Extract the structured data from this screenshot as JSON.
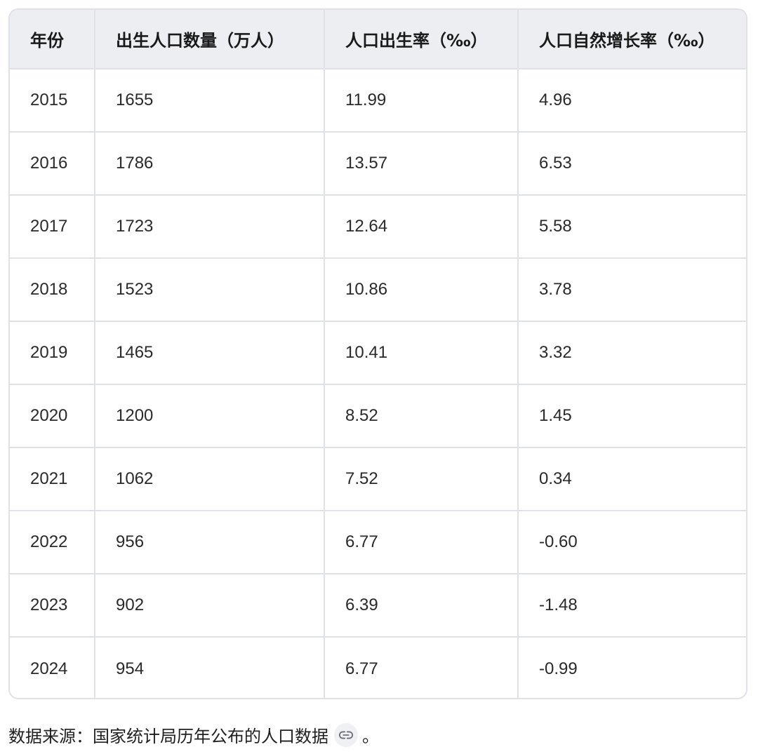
{
  "table": {
    "headers": [
      "年份",
      "出生人口数量（万人）",
      "人口出生率（‰）",
      "人口自然增长率（‰）"
    ],
    "rows": [
      [
        "2015",
        "1655",
        "11.99",
        "4.96"
      ],
      [
        "2016",
        "1786",
        "13.57",
        "6.53"
      ],
      [
        "2017",
        "1723",
        "12.64",
        "5.58"
      ],
      [
        "2018",
        "1523",
        "10.86",
        "3.78"
      ],
      [
        "2019",
        "1465",
        "10.41",
        "3.32"
      ],
      [
        "2020",
        "1200",
        "8.52",
        "1.45"
      ],
      [
        "2021",
        "1062",
        "7.52",
        "0.34"
      ],
      [
        "2022",
        "956",
        "6.77",
        "-0.60"
      ],
      [
        "2023",
        "902",
        "6.39",
        "-1.48"
      ],
      [
        "2024",
        "954",
        "6.77",
        "-0.99"
      ]
    ]
  },
  "source": {
    "label": "数据来源：国家统计局历年公布的人口数据",
    "link_icon": "link-icon",
    "end_punct": "。"
  }
}
